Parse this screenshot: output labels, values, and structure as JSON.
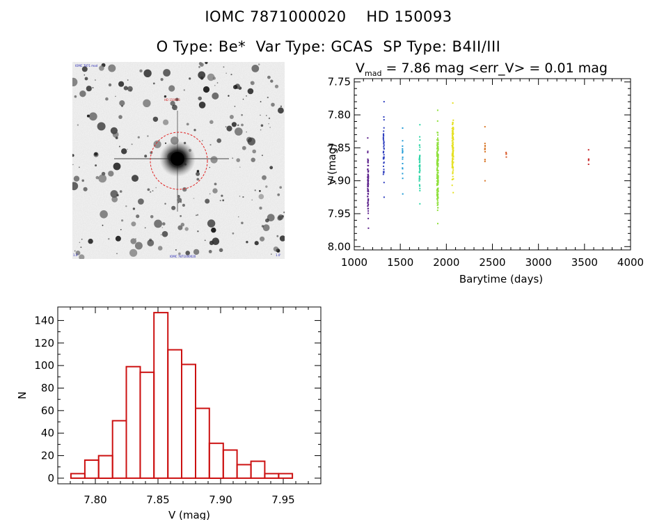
{
  "header": {
    "line1": "IOMC 7871000020    HD 150093",
    "line2": "O Type: Be*  Var Type: GCAS  SP Type: B4II/III"
  },
  "finder": {
    "description_hidden": false,
    "top_left_label": "IOMC 7871 mod",
    "target_label": "HD 150093",
    "bottom_label": "IOMC 7871000020",
    "bottom_left_label": "1.0'",
    "bottom_right_label": "1.0'",
    "circle_color": "#e02020"
  },
  "chart_data": [
    {
      "type": "scatter",
      "title": "V_mad = 7.86 mag <err_V> = 0.01 mag",
      "title_parts": {
        "v": "V",
        "sub": "mad",
        "rest": " = 7.86 mag <err_V> = 0.01 mag"
      },
      "xlabel": "Barytime (days)",
      "ylabel": "V (mag)",
      "xlim": [
        1000,
        4000
      ],
      "ylim": [
        8.0,
        7.75
      ],
      "y_inverted": true,
      "xticks": [
        1000,
        1500,
        2000,
        2500,
        3000,
        3500,
        4000
      ],
      "yticks": [
        "7.75",
        "7.80",
        "7.85",
        "7.90",
        "7.95",
        "8.00"
      ],
      "groups": [
        {
          "x": 1150,
          "color": "#5a1f8a",
          "ymin": 7.835,
          "ymax": 7.972,
          "n": 70
        },
        {
          "x": 1320,
          "color": "#2f3fbf",
          "ymin": 7.78,
          "ymax": 7.925,
          "n": 40
        },
        {
          "x": 1525,
          "color": "#1f9ad6",
          "ymin": 7.82,
          "ymax": 7.92,
          "n": 15
        },
        {
          "x": 1710,
          "color": "#2fd6a8",
          "ymin": 7.815,
          "ymax": 7.935,
          "n": 45
        },
        {
          "x": 1905,
          "color": "#8ee03a",
          "ymin": 7.793,
          "ymax": 7.965,
          "n": 160
        },
        {
          "x": 2070,
          "color": "#e5e022",
          "ymin": 7.782,
          "ymax": 7.918,
          "n": 100
        },
        {
          "x": 2420,
          "color": "#d9782a",
          "ymin": 7.818,
          "ymax": 7.9,
          "n": 12
        },
        {
          "x": 2650,
          "color": "#d95a2a",
          "ymin": 7.857,
          "ymax": 7.864,
          "n": 4
        },
        {
          "x": 3545,
          "color": "#c8282a",
          "ymin": 7.853,
          "ymax": 7.875,
          "n": 5
        }
      ]
    },
    {
      "type": "bar",
      "style": "histogram-step",
      "xlabel": "V (mag)",
      "ylabel": "N",
      "xlim": [
        7.77,
        7.98
      ],
      "ylim": [
        -5,
        152
      ],
      "xticks": [
        "7.80",
        "7.85",
        "7.90",
        "7.95"
      ],
      "yticks": [
        0,
        20,
        40,
        60,
        80,
        100,
        120,
        140
      ],
      "bar_color": "#cc1111",
      "bin_edges": [
        7.7805,
        7.7916,
        7.8026,
        7.8137,
        7.8247,
        7.8358,
        7.8468,
        7.8579,
        7.8689,
        7.88,
        7.891,
        7.9021,
        7.9131,
        7.9242,
        7.9352,
        7.9463,
        7.9573,
        7.9684
      ],
      "values": [
        4,
        16,
        20,
        51,
        99,
        94,
        147,
        114,
        101,
        62,
        31,
        25,
        12,
        15,
        4,
        4,
        0
      ]
    }
  ]
}
